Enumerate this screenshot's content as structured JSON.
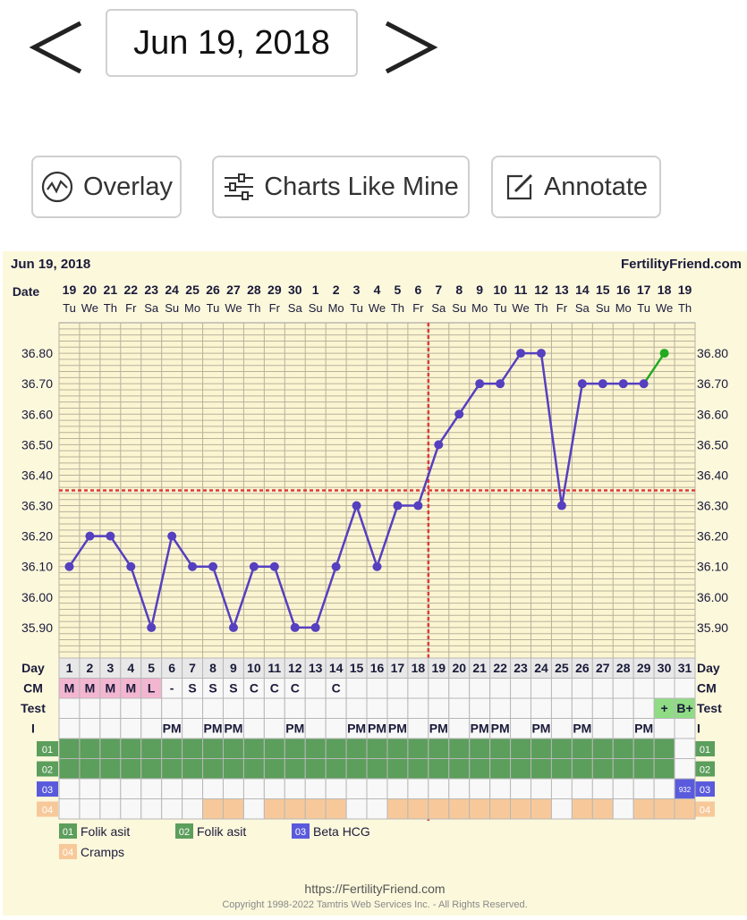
{
  "header": {
    "date": "Jun 19, 2018",
    "prev_icon": "chevron-left-icon",
    "next_icon": "chevron-right-icon"
  },
  "toolbar": {
    "overlay_label": "Overlay",
    "charts_like_mine_label": "Charts Like Mine",
    "annotate_label": "Annotate",
    "overlay_icon": "chart-circle-icon",
    "charts_like_mine_icon": "sliders-icon",
    "annotate_icon": "edit-icon"
  },
  "chart_data": {
    "type": "line",
    "title": "Jun 19, 2018",
    "brand": "FertilityFriend.com",
    "date_label": "Date",
    "day_label": "Day",
    "dates": [
      "19",
      "20",
      "21",
      "22",
      "23",
      "24",
      "25",
      "26",
      "27",
      "28",
      "29",
      "30",
      "1",
      "2",
      "3",
      "4",
      "5",
      "6",
      "7",
      "8",
      "9",
      "10",
      "11",
      "12",
      "13",
      "14",
      "15",
      "16",
      "17",
      "18",
      "19"
    ],
    "weekdays": [
      "Tu",
      "We",
      "Th",
      "Fr",
      "Sa",
      "Su",
      "Mo",
      "Tu",
      "We",
      "Th",
      "Fr",
      "Sa",
      "Su",
      "Mo",
      "Tu",
      "We",
      "Th",
      "Fr",
      "Sa",
      "Su",
      "Mo",
      "Tu",
      "We",
      "Th",
      "Fr",
      "Sa",
      "Su",
      "Mo",
      "Tu",
      "We",
      "Th"
    ],
    "days": [
      "1",
      "2",
      "3",
      "4",
      "5",
      "6",
      "7",
      "8",
      "9",
      "10",
      "11",
      "12",
      "13",
      "14",
      "15",
      "16",
      "17",
      "18",
      "19",
      "20",
      "21",
      "22",
      "23",
      "24",
      "25",
      "26",
      "27",
      "28",
      "29",
      "30",
      "31"
    ],
    "temperatures": [
      36.1,
      36.2,
      36.2,
      36.1,
      35.9,
      36.2,
      36.1,
      36.1,
      35.9,
      36.1,
      36.1,
      35.9,
      35.9,
      36.1,
      36.3,
      36.1,
      36.3,
      36.3,
      36.5,
      36.6,
      36.7,
      36.7,
      36.8,
      36.8,
      36.3,
      36.7,
      36.7,
      36.7,
      36.7,
      36.8,
      null
    ],
    "latest_segment_color": "#22aa22",
    "line_color": "#5540c0",
    "coverline": 36.35,
    "ovulation_day": 18,
    "ylim": [
      35.8,
      36.9
    ],
    "yticks": [
      "35.90",
      "36.00",
      "36.10",
      "36.20",
      "36.30",
      "36.40",
      "36.50",
      "36.60",
      "36.70",
      "36.80"
    ],
    "cm_label": "CM",
    "cm": [
      "M",
      "M",
      "M",
      "M",
      "L",
      "-",
      "S",
      "S",
      "S",
      "C",
      "C",
      "C",
      "",
      "C",
      "",
      "",
      "",
      "",
      "",
      "",
      "",
      "",
      "",
      "",
      "",
      "",
      "",
      "",
      "",
      "",
      ""
    ],
    "test_label": "Test",
    "tests": [
      "",
      "",
      "",
      "",
      "",
      "",
      "",
      "",
      "",
      "",
      "",
      "",
      "",
      "",
      "",
      "",
      "",
      "",
      "",
      "",
      "",
      "",
      "",
      "",
      "",
      "",
      "",
      "",
      "",
      "+",
      "B+"
    ],
    "i_label": "I",
    "intercourse": [
      "",
      "",
      "",
      "",
      "",
      "PM",
      "",
      "PM",
      "PM",
      "",
      "",
      "PM",
      "",
      "",
      "PM",
      "PM",
      "PM",
      "",
      "PM",
      "",
      "PM",
      "PM",
      "",
      "PM",
      "",
      "PM",
      "",
      "",
      "PM",
      "",
      ""
    ],
    "rows": [
      {
        "code": "01",
        "color": "#5c9e5c",
        "days": [
          1,
          2,
          3,
          4,
          5,
          6,
          7,
          8,
          9,
          10,
          11,
          12,
          13,
          14,
          15,
          16,
          17,
          18,
          19,
          20,
          21,
          22,
          23,
          24,
          25,
          26,
          27,
          28,
          29,
          30
        ]
      },
      {
        "code": "02",
        "color": "#5c9e5c",
        "days": [
          1,
          2,
          3,
          4,
          5,
          6,
          7,
          8,
          9,
          10,
          11,
          12,
          13,
          14,
          15,
          16,
          17,
          18,
          19,
          20,
          21,
          22,
          23,
          24,
          25,
          26,
          27,
          28,
          29,
          30
        ]
      },
      {
        "code": "03",
        "color": "#5a5add",
        "days": [
          31
        ],
        "cell_text": "932"
      },
      {
        "code": "04",
        "color": "#f7c99a",
        "days": [
          8,
          9,
          11,
          12,
          13,
          14,
          17,
          18,
          19,
          20,
          21,
          22,
          23,
          24,
          26,
          27,
          29,
          30,
          31
        ]
      }
    ],
    "legend": [
      {
        "code": "01",
        "label": "Folik asit",
        "color": "#5c9e5c"
      },
      {
        "code": "02",
        "label": "Folik asit",
        "color": "#5c9e5c"
      },
      {
        "code": "03",
        "label": "Beta HCG",
        "color": "#5a5add"
      },
      {
        "code": "04",
        "label": "Cramps",
        "color": "#f7c99a"
      }
    ]
  },
  "footer": {
    "url": "https://FertilityFriend.com",
    "copyright": "Copyright 1998-2022 Tamtris Web Services Inc. - All Rights Reserved."
  }
}
